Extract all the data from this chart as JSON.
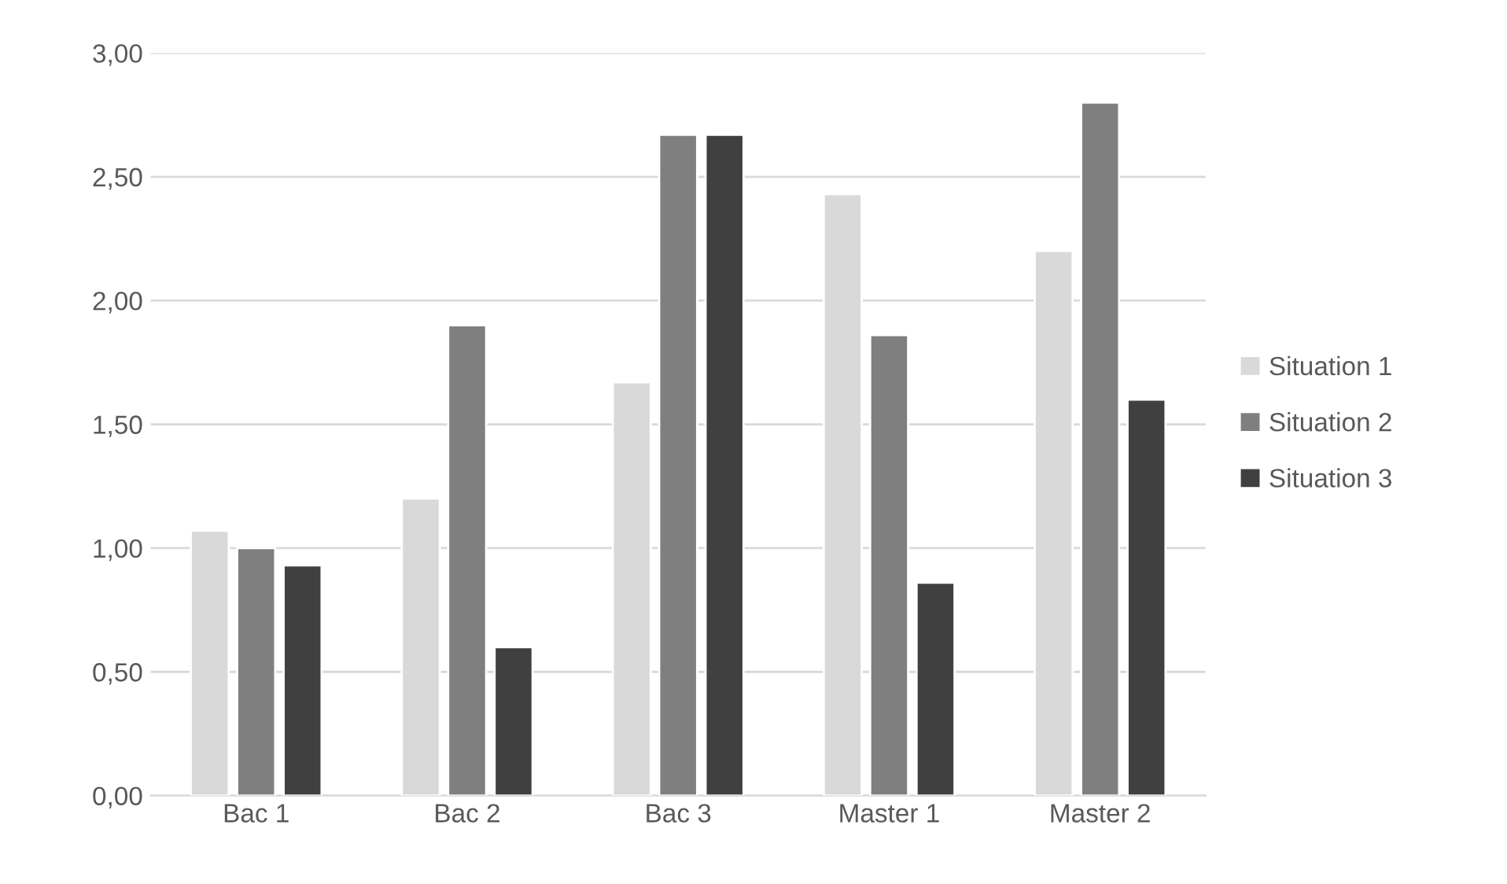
{
  "chart_data": {
    "type": "bar",
    "categories": [
      "Bac 1",
      "Bac 2",
      "Bac 3",
      "Master 1",
      "Master 2"
    ],
    "series": [
      {
        "name": "Situation 1",
        "color": "#d9d9d9",
        "values": [
          1.07,
          1.2,
          1.67,
          2.43,
          2.2
        ]
      },
      {
        "name": "Situation 2",
        "color": "#7f7f7f",
        "values": [
          1.0,
          1.9,
          2.67,
          1.86,
          2.8
        ]
      },
      {
        "name": "Situation 3",
        "color": "#404040",
        "values": [
          0.93,
          0.6,
          2.67,
          0.86,
          1.6
        ]
      }
    ],
    "ylim": [
      0,
      3
    ],
    "yticks": [
      {
        "value": 0,
        "label": "0,00"
      },
      {
        "value": 0.5,
        "label": "0,50"
      },
      {
        "value": 1,
        "label": "1,00"
      },
      {
        "value": 1.5,
        "label": "1,50"
      },
      {
        "value": 2,
        "label": "2,00"
      },
      {
        "value": 2.5,
        "label": "2,50"
      },
      {
        "value": 3,
        "label": "3,00"
      }
    ],
    "grid": "y",
    "legend": "right"
  }
}
